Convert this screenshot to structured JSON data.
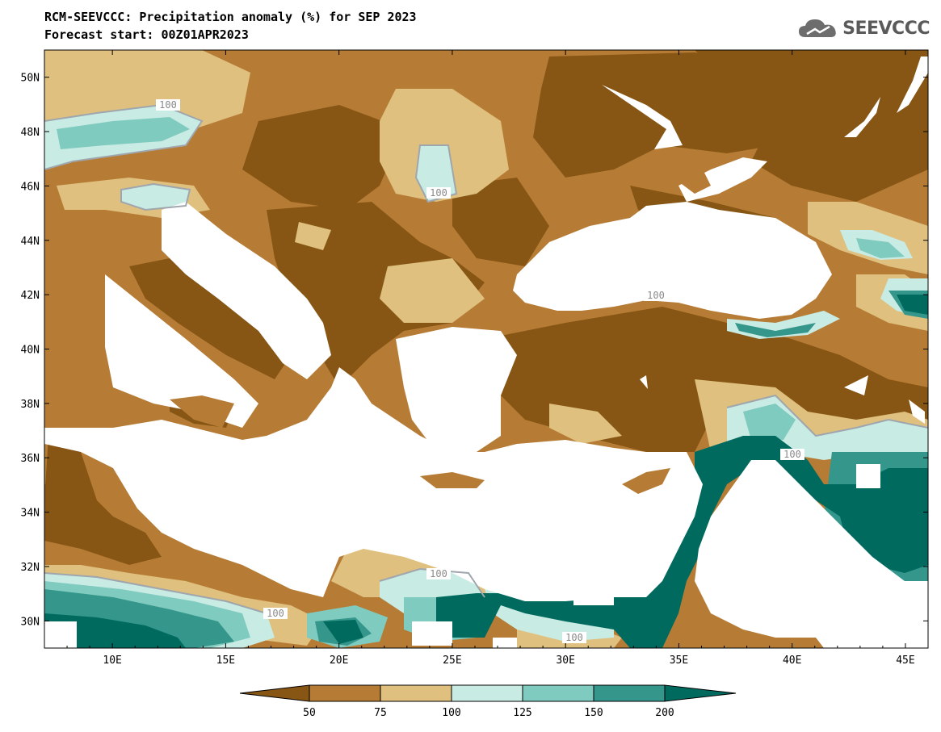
{
  "header": {
    "title_line1": "RCM-SEEVCCC: Precipitation anomaly (%) for SEP 2023",
    "title_line2": "Forecast start: 00Z01APR2023"
  },
  "logo": {
    "text": "SEEVCCC",
    "icon": "cloud-icon"
  },
  "map": {
    "lon_ticks": [
      "10E",
      "15E",
      "20E",
      "25E",
      "30E",
      "35E",
      "40E",
      "45E"
    ],
    "lat_ticks": [
      "50N",
      "48N",
      "46N",
      "44N",
      "42N",
      "40N",
      "38N",
      "36N",
      "34N",
      "32N",
      "30N"
    ],
    "lon_range": [
      7,
      46
    ],
    "lat_range": [
      29,
      51
    ],
    "contour_labels": [
      "100",
      "100",
      "100",
      "100",
      "100",
      "100",
      "100"
    ]
  },
  "legend": {
    "tick_labels": [
      "50",
      "75",
      "100",
      "125",
      "150",
      "200"
    ],
    "colors": {
      "below_50": "#875614",
      "c50_75": "#b67c35",
      "c75_100": "#dfc07e",
      "c100_125": "#c8ebe4",
      "c125_150": "#80cbbf",
      "c150_200": "#35968c",
      "above_200": "#006a5f",
      "land_no_data": "#ffffff",
      "contour_line": "#9fa6ad"
    }
  }
}
